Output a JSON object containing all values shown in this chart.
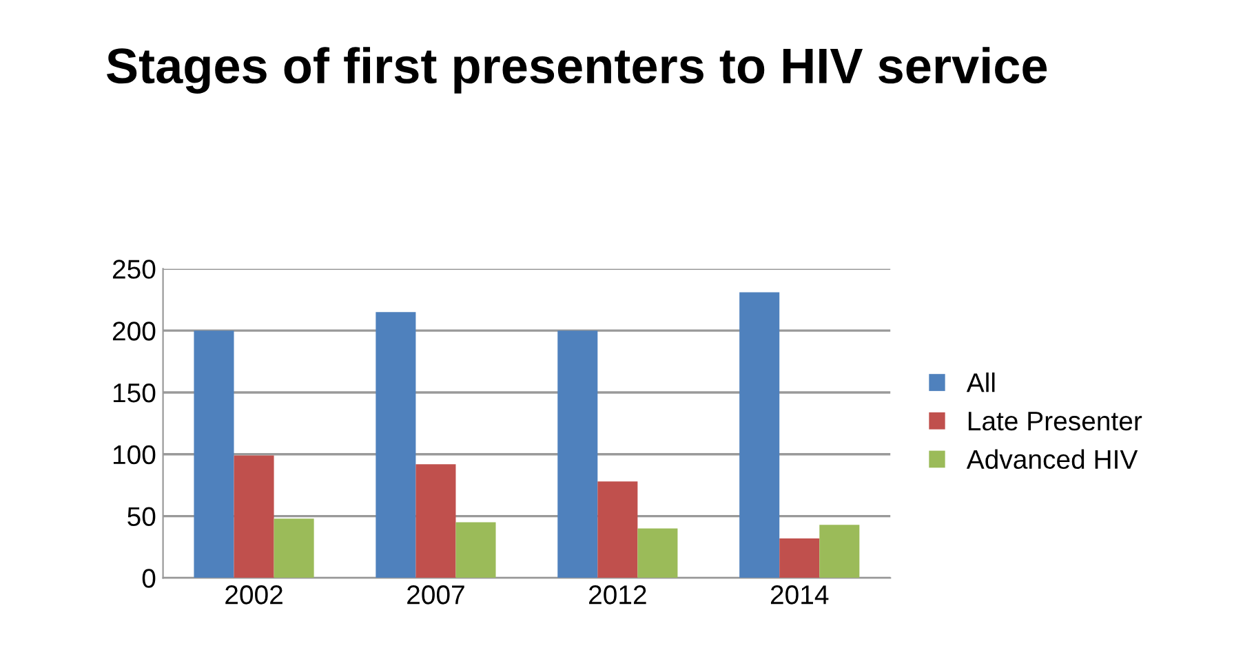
{
  "chart_data": {
    "type": "bar",
    "title": "Stages of first presenters to HIV service",
    "categories": [
      "2002",
      "2007",
      "2012",
      "2014"
    ],
    "series": [
      {
        "name": "All",
        "color": "#4f81bd",
        "values": [
          200,
          215,
          200,
          231
        ]
      },
      {
        "name": "Late Presenter",
        "color": "#c0504d",
        "values": [
          99,
          92,
          78,
          32
        ]
      },
      {
        "name": "Advanced HIV",
        "color": "#9bbb59",
        "values": [
          48,
          45,
          40,
          43
        ]
      }
    ],
    "ylim": [
      0,
      250
    ],
    "yticks": [
      0,
      50,
      100,
      150,
      200,
      250
    ],
    "grid": "y",
    "legend": "right"
  }
}
